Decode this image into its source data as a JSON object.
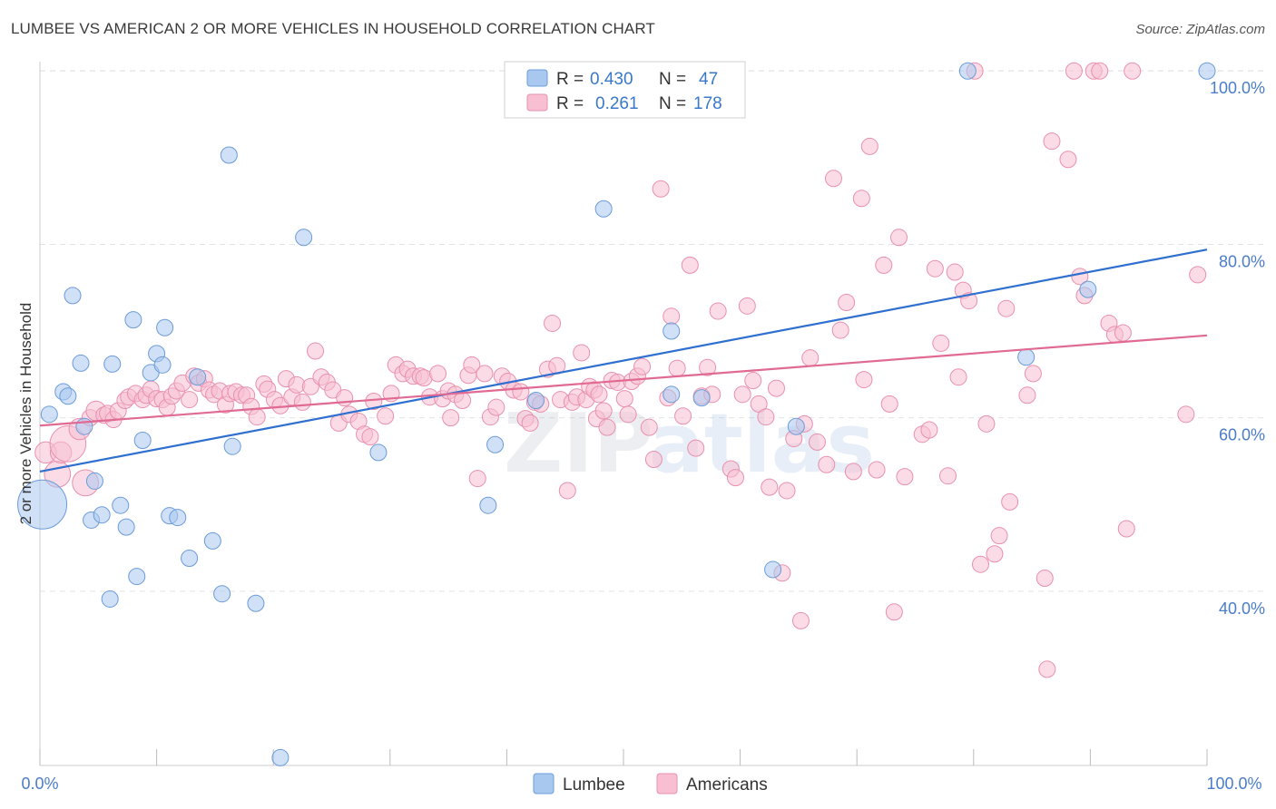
{
  "title": "LUMBEE VS AMERICAN 2 OR MORE VEHICLES IN HOUSEHOLD CORRELATION CHART",
  "source": "Source: ZipAtlas.com",
  "watermark": {
    "zip": "ZIP",
    "atlas": "atlas"
  },
  "colors": {
    "lumbee_fill": "#a9c8f0",
    "lumbee_stroke": "#6b9bd8",
    "lumbee_line": "#2f6fcf",
    "americans_fill": "#f7bfd1",
    "americans_stroke": "#e890ad",
    "americans_line": "#e06a93",
    "grid": "#e3e3e3",
    "axis_text": "#4a7cc9"
  },
  "legend": {
    "r_label": "R =",
    "n_label": "N =",
    "rows": [
      {
        "series": "Lumbee",
        "r": "0.430",
        "n": "47"
      },
      {
        "series": "Americans",
        "r": "0.261",
        "n": "178"
      }
    ]
  },
  "bottom_legend": [
    "Lumbee",
    "Americans"
  ],
  "chart_data": {
    "type": "scatter",
    "title": "LUMBEE VS AMERICAN 2 OR MORE VEHICLES IN HOUSEHOLD CORRELATION CHART",
    "xlabel": "",
    "ylabel": "2 or more Vehicles in Household",
    "x_tick_labels": [
      "0.0%",
      "100.0%"
    ],
    "y_tick_labels": [
      "40.0%",
      "60.0%",
      "80.0%",
      "100.0%"
    ],
    "y_ticks": [
      40,
      60,
      80,
      100
    ],
    "xlim": [
      0,
      100
    ],
    "ylim": [
      20,
      102
    ],
    "grid": true,
    "legend_position": "top-center",
    "series": [
      {
        "name": "Lumbee",
        "r": 0.43,
        "n": 47,
        "trend": {
          "x0": 0,
          "y0": 53.8,
          "x1": 100,
          "y1": 79.4
        },
        "points": [
          [
            0.2,
            50,
            3
          ],
          [
            0.8,
            60.4,
            1
          ],
          [
            2,
            63,
            1
          ],
          [
            2.4,
            62.5,
            1
          ],
          [
            2.8,
            74.1,
            1
          ],
          [
            3.5,
            66.3,
            1
          ],
          [
            3.8,
            59,
            1
          ],
          [
            4.4,
            48.2,
            1
          ],
          [
            4.7,
            52.7,
            1
          ],
          [
            5.3,
            48.8,
            1
          ],
          [
            6,
            39.1,
            1
          ],
          [
            6.2,
            66.2,
            1
          ],
          [
            6.9,
            49.9,
            1
          ],
          [
            7.4,
            47.4,
            1
          ],
          [
            8,
            71.3,
            1
          ],
          [
            8.3,
            41.7,
            1
          ],
          [
            8.8,
            57.4,
            1
          ],
          [
            9.5,
            65.2,
            1
          ],
          [
            10,
            67.4,
            1
          ],
          [
            10.5,
            66.1,
            1
          ],
          [
            10.7,
            70.4,
            1
          ],
          [
            11.1,
            48.7,
            1
          ],
          [
            11.8,
            48.5,
            1
          ],
          [
            12.8,
            43.8,
            1
          ],
          [
            13.5,
            64.7,
            1
          ],
          [
            14.8,
            45.8,
            1
          ],
          [
            15.6,
            39.7,
            1
          ],
          [
            16.2,
            90.3,
            1
          ],
          [
            16.5,
            56.7,
            1
          ],
          [
            18.5,
            38.6,
            1
          ],
          [
            20.6,
            20.8,
            1
          ],
          [
            22.6,
            80.8,
            1
          ],
          [
            29,
            56,
            1
          ],
          [
            38.4,
            49.9,
            1
          ],
          [
            39,
            56.9,
            1
          ],
          [
            42.5,
            62,
            1
          ],
          [
            48.3,
            84.1,
            1
          ],
          [
            54.1,
            70,
            1
          ],
          [
            54.1,
            62.7,
            1
          ],
          [
            56.7,
            62.3,
            1
          ],
          [
            62.8,
            42.5,
            1
          ],
          [
            64.8,
            59,
            1
          ],
          [
            79.5,
            100,
            1
          ],
          [
            84.5,
            67,
            1
          ],
          [
            89.8,
            74.8,
            1
          ],
          [
            100,
            100,
            1
          ]
        ]
      },
      {
        "name": "Americans",
        "r": 0.261,
        "n": 178,
        "trend": {
          "x0": 0,
          "y0": 59.1,
          "x1": 100,
          "y1": 69.5
        },
        "points": [
          [
            0.5,
            56,
            1.3
          ],
          [
            1.5,
            53.5,
            1.6
          ],
          [
            1.8,
            56,
            1.3
          ],
          [
            2.4,
            57,
            2.2
          ],
          [
            3.4,
            58.7,
            1.3
          ],
          [
            3.9,
            52.5,
            1.6
          ],
          [
            4.3,
            60,
            1
          ],
          [
            4.8,
            60.8,
            1.2
          ],
          [
            5.5,
            60.3,
            1
          ],
          [
            5.8,
            60.5,
            1
          ],
          [
            6.3,
            59.8,
            1
          ],
          [
            6.7,
            60.8,
            1
          ],
          [
            7.3,
            62,
            1
          ],
          [
            7.6,
            62.4,
            1
          ],
          [
            8.2,
            62.8,
            1
          ],
          [
            8.8,
            62.1,
            1
          ],
          [
            9.1,
            62.6,
            1
          ],
          [
            9.5,
            63.3,
            1
          ],
          [
            10,
            62.2,
            1
          ],
          [
            10.5,
            62.1,
            1
          ],
          [
            10.9,
            61.2,
            1
          ],
          [
            11.3,
            62.5,
            1
          ],
          [
            11.7,
            63.1,
            1
          ],
          [
            12.2,
            64,
            1
          ],
          [
            12.8,
            62.1,
            1
          ],
          [
            13.2,
            64.8,
            1
          ],
          [
            13.6,
            64,
            1
          ],
          [
            14.1,
            64.5,
            1
          ],
          [
            14.5,
            63.2,
            1
          ],
          [
            14.9,
            62.7,
            1
          ],
          [
            15.4,
            63.1,
            1
          ],
          [
            15.9,
            61.5,
            1
          ],
          [
            16.3,
            62.8,
            1
          ],
          [
            16.8,
            63,
            1
          ],
          [
            17.3,
            62.6,
            1
          ],
          [
            17.7,
            62.6,
            1
          ],
          [
            18.1,
            61.3,
            1
          ],
          [
            18.6,
            60.1,
            1
          ],
          [
            19.2,
            63.9,
            1
          ],
          [
            19.5,
            63.3,
            1
          ],
          [
            20.1,
            62.1,
            1
          ],
          [
            20.6,
            61.4,
            1
          ],
          [
            21.1,
            64.5,
            1
          ],
          [
            21.6,
            62.4,
            1
          ],
          [
            22,
            63.8,
            1
          ],
          [
            22.5,
            61.8,
            1
          ],
          [
            23.2,
            63.6,
            1
          ],
          [
            23.6,
            67.7,
            1
          ],
          [
            24.1,
            64.7,
            1
          ],
          [
            24.6,
            64.1,
            1
          ],
          [
            25.1,
            63.2,
            1
          ],
          [
            25.6,
            59.4,
            1
          ],
          [
            26.1,
            62.3,
            1
          ],
          [
            26.5,
            60.4,
            1
          ],
          [
            27.3,
            59.6,
            1
          ],
          [
            27.8,
            58.1,
            1
          ],
          [
            28.3,
            57.8,
            1
          ],
          [
            28.6,
            61.9,
            1
          ],
          [
            29.6,
            60.2,
            1
          ],
          [
            30.1,
            62.8,
            1
          ],
          [
            30.5,
            66.1,
            1
          ],
          [
            31.1,
            65.1,
            1
          ],
          [
            31.5,
            65.6,
            1
          ],
          [
            32,
            64.8,
            1
          ],
          [
            32.6,
            64.8,
            1
          ],
          [
            32.9,
            64.6,
            1
          ],
          [
            33.4,
            62.4,
            1
          ],
          [
            34.1,
            65.1,
            1
          ],
          [
            34.5,
            62.2,
            1
          ],
          [
            35,
            63.1,
            1
          ],
          [
            35.2,
            60,
            1
          ],
          [
            35.6,
            62.7,
            1
          ],
          [
            36.2,
            62,
            1
          ],
          [
            36.7,
            64.9,
            1
          ],
          [
            37,
            66.1,
            1
          ],
          [
            37.5,
            53,
            1
          ],
          [
            38.1,
            65.1,
            1
          ],
          [
            38.6,
            60.1,
            1
          ],
          [
            39.1,
            61.2,
            1
          ],
          [
            39.6,
            64.8,
            1
          ],
          [
            40.1,
            64.2,
            1
          ],
          [
            40.6,
            63.2,
            1
          ],
          [
            41.2,
            63,
            1
          ],
          [
            41.6,
            59.9,
            1
          ],
          [
            42,
            59.4,
            1
          ],
          [
            42.4,
            61.8,
            1
          ],
          [
            42.9,
            61.6,
            1
          ],
          [
            43.5,
            65.6,
            1
          ],
          [
            43.9,
            70.9,
            1
          ],
          [
            44.3,
            66,
            1
          ],
          [
            44.6,
            62.1,
            1
          ],
          [
            45.2,
            51.6,
            1
          ],
          [
            45.6,
            61.8,
            1
          ],
          [
            46,
            62.4,
            1
          ],
          [
            46.4,
            67.5,
            1
          ],
          [
            46.8,
            62.1,
            1
          ],
          [
            47.1,
            63.6,
            1
          ],
          [
            47.5,
            63.2,
            1
          ],
          [
            47.7,
            59.9,
            1
          ],
          [
            47.9,
            62.7,
            1
          ],
          [
            48.3,
            60.8,
            1
          ],
          [
            48.6,
            58.9,
            1
          ],
          [
            49,
            64.3,
            1
          ],
          [
            49.5,
            64.1,
            1
          ],
          [
            50.1,
            62.2,
            1
          ],
          [
            50.4,
            60.4,
            1
          ],
          [
            50.7,
            64.2,
            1
          ],
          [
            51.2,
            64.8,
            1
          ],
          [
            51.6,
            65.9,
            1
          ],
          [
            52.2,
            58.9,
            1
          ],
          [
            52.6,
            55.2,
            1
          ],
          [
            53.2,
            86.4,
            1
          ],
          [
            53.8,
            62.3,
            1
          ],
          [
            54.1,
            71.7,
            1
          ],
          [
            54.6,
            65.7,
            1
          ],
          [
            55.1,
            60.2,
            1
          ],
          [
            55.7,
            77.6,
            1
          ],
          [
            56.2,
            56.5,
            1
          ],
          [
            56.7,
            62.5,
            1
          ],
          [
            57.2,
            65.8,
            1
          ],
          [
            57.6,
            62.7,
            1
          ],
          [
            58.1,
            72.3,
            1
          ],
          [
            59.2,
            54.1,
            1
          ],
          [
            59.6,
            53.1,
            1
          ],
          [
            60.2,
            62.7,
            1
          ],
          [
            60.6,
            72.9,
            1
          ],
          [
            61.1,
            64.3,
            1
          ],
          [
            61.6,
            61.6,
            1
          ],
          [
            62.2,
            60.1,
            1
          ],
          [
            62.5,
            52,
            1
          ],
          [
            63.1,
            63.4,
            1
          ],
          [
            63.6,
            42.1,
            1
          ],
          [
            64,
            51.6,
            1
          ],
          [
            64.6,
            57.6,
            1
          ],
          [
            65.2,
            36.6,
            1
          ],
          [
            65.5,
            59.3,
            1
          ],
          [
            66,
            66.9,
            1
          ],
          [
            66.6,
            57.2,
            1
          ],
          [
            67.4,
            54.6,
            1
          ],
          [
            68,
            87.6,
            1
          ],
          [
            68.6,
            70.1,
            1
          ],
          [
            69.1,
            73.3,
            1
          ],
          [
            69.7,
            53.8,
            1
          ],
          [
            70.4,
            85.3,
            1
          ],
          [
            70.6,
            64.4,
            1
          ],
          [
            71.1,
            91.3,
            1
          ],
          [
            71.7,
            54,
            1
          ],
          [
            72.3,
            77.6,
            1
          ],
          [
            72.8,
            61.6,
            1
          ],
          [
            73.2,
            37.6,
            1
          ],
          [
            73.6,
            80.8,
            1
          ],
          [
            74.1,
            53.2,
            1
          ],
          [
            75.6,
            58.1,
            1
          ],
          [
            76.2,
            58.6,
            1
          ],
          [
            76.7,
            77.2,
            1
          ],
          [
            77.2,
            68.6,
            1
          ],
          [
            77.8,
            53.3,
            1
          ],
          [
            78.4,
            76.8,
            1
          ],
          [
            78.7,
            64.7,
            1
          ],
          [
            79.1,
            74.7,
            1
          ],
          [
            79.6,
            73.5,
            1
          ],
          [
            80.1,
            100,
            1
          ],
          [
            80.6,
            43.1,
            1
          ],
          [
            81.1,
            59.3,
            1
          ],
          [
            81.8,
            44.3,
            1
          ],
          [
            82.2,
            46.4,
            1
          ],
          [
            82.8,
            72.6,
            1
          ],
          [
            83.1,
            50.3,
            1
          ],
          [
            84.6,
            62.6,
            1
          ],
          [
            85.1,
            65.1,
            1
          ],
          [
            86.1,
            41.5,
            1
          ],
          [
            86.3,
            31,
            1
          ],
          [
            86.7,
            91.9,
            1
          ],
          [
            88.1,
            89.8,
            1
          ],
          [
            88.6,
            100,
            1
          ],
          [
            89.1,
            76.3,
            1
          ],
          [
            89.5,
            74.1,
            1
          ],
          [
            90.3,
            100,
            1
          ],
          [
            90.8,
            100,
            1
          ],
          [
            91.6,
            70.9,
            1
          ],
          [
            92.1,
            69.6,
            1
          ],
          [
            92.8,
            69.8,
            1
          ],
          [
            93.1,
            47.2,
            1
          ],
          [
            93.6,
            100,
            1
          ],
          [
            98.2,
            60.4,
            1
          ],
          [
            99.2,
            76.5,
            1
          ]
        ]
      }
    ]
  }
}
